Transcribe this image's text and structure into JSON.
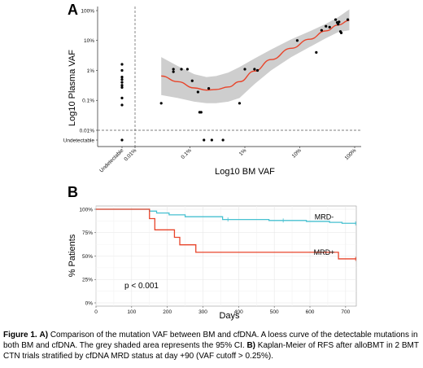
{
  "chart_data": [
    {
      "panel": "A",
      "type": "scatter",
      "xlabel": "Log10 BM VAF",
      "ylabel": "Log10 Plasma VAF",
      "x_scale": "log",
      "y_scale": "log",
      "x_ticks": [
        "Undetectable",
        "0.01%",
        "0.1%",
        "1%",
        "10%",
        "100%"
      ],
      "x_tick_values": [
        "Undetectable",
        0.0001,
        0.001,
        0.01,
        0.1,
        1
      ],
      "y_ticks": [
        "Undetectable",
        "0.01%",
        "0.1%",
        "1%",
        "10%",
        "100%"
      ],
      "y_tick_values": [
        "Undetectable",
        0.0001,
        0.001,
        0.01,
        0.1,
        1
      ],
      "thresholds": {
        "x": 0.0001,
        "y": 0.0001
      },
      "grid": false,
      "points_undetectable_bm": [
        0.016,
        0.01,
        0.006,
        0.005,
        0.004,
        0.0032,
        0.0027,
        0.0012,
        0.0007,
        "Undetectable"
      ],
      "points": [
        {
          "x": 0.0003,
          "y": 0.0008
        },
        {
          "x": 0.0005,
          "y": 0.011
        },
        {
          "x": 0.0005,
          "y": 0.009
        },
        {
          "x": 0.0007,
          "y": 0.011
        },
        {
          "x": 0.0009,
          "y": 0.011
        },
        {
          "x": 0.0011,
          "y": 0.0045
        },
        {
          "x": 0.0014,
          "y": 0.0019
        },
        {
          "x": 0.0015,
          "y": 0.0004
        },
        {
          "x": 0.0016,
          "y": 0.0004
        },
        {
          "x": 0.0018,
          "y": "Undetectable"
        },
        {
          "x": 0.0022,
          "y": 0.0025
        },
        {
          "x": 0.0025,
          "y": "Undetectable"
        },
        {
          "x": 0.004,
          "y": "Undetectable"
        },
        {
          "x": 0.008,
          "y": 0.0008
        },
        {
          "x": 0.01,
          "y": 0.011
        },
        {
          "x": 0.015,
          "y": 0.011
        },
        {
          "x": 0.017,
          "y": 0.01
        },
        {
          "x": 0.09,
          "y": 0.1
        },
        {
          "x": 0.2,
          "y": 0.04
        },
        {
          "x": 0.25,
          "y": 0.22
        },
        {
          "x": 0.3,
          "y": 0.3
        },
        {
          "x": 0.35,
          "y": 0.28
        },
        {
          "x": 0.45,
          "y": 0.5
        },
        {
          "x": 0.48,
          "y": 0.4
        },
        {
          "x": 0.5,
          "y": 0.35
        },
        {
          "x": 0.52,
          "y": 0.42
        },
        {
          "x": 0.55,
          "y": 0.2
        },
        {
          "x": 0.57,
          "y": 0.18
        },
        {
          "x": 0.75,
          "y": 0.5
        }
      ],
      "loess_curve": [
        {
          "x": 0.0003,
          "y": 0.0065
        },
        {
          "x": 0.0006,
          "y": 0.0042
        },
        {
          "x": 0.0012,
          "y": 0.0026
        },
        {
          "x": 0.002,
          "y": 0.0022
        },
        {
          "x": 0.003,
          "y": 0.0023
        },
        {
          "x": 0.005,
          "y": 0.0028
        },
        {
          "x": 0.008,
          "y": 0.0042
        },
        {
          "x": 0.015,
          "y": 0.0095
        },
        {
          "x": 0.03,
          "y": 0.023
        },
        {
          "x": 0.07,
          "y": 0.055
        },
        {
          "x": 0.15,
          "y": 0.11
        },
        {
          "x": 0.3,
          "y": 0.21
        },
        {
          "x": 0.5,
          "y": 0.33
        },
        {
          "x": 0.8,
          "y": 0.47
        }
      ],
      "ci_band": [
        {
          "x": 0.0003,
          "lo": 0.0015,
          "hi": 0.028
        },
        {
          "x": 0.0006,
          "lo": 0.0012,
          "hi": 0.014
        },
        {
          "x": 0.0012,
          "lo": 0.0009,
          "hi": 0.0075
        },
        {
          "x": 0.002,
          "lo": 0.0008,
          "hi": 0.006
        },
        {
          "x": 0.003,
          "lo": 0.0008,
          "hi": 0.0065
        },
        {
          "x": 0.005,
          "lo": 0.0009,
          "hi": 0.0085
        },
        {
          "x": 0.008,
          "lo": 0.0012,
          "hi": 0.013
        },
        {
          "x": 0.015,
          "lo": 0.0035,
          "hi": 0.025
        },
        {
          "x": 0.03,
          "lo": 0.01,
          "hi": 0.05
        },
        {
          "x": 0.07,
          "lo": 0.028,
          "hi": 0.11
        },
        {
          "x": 0.15,
          "lo": 0.06,
          "hi": 0.2
        },
        {
          "x": 0.3,
          "lo": 0.12,
          "hi": 0.36
        },
        {
          "x": 0.5,
          "lo": 0.19,
          "hi": 0.6
        },
        {
          "x": 0.8,
          "lo": 0.22,
          "hi": 1.1
        }
      ],
      "colors": {
        "points": "#000000",
        "curve": "#e8442a",
        "band": "#c9c9c9"
      }
    },
    {
      "panel": "B",
      "type": "line",
      "subtype": "kaplan-meier",
      "xlabel": "Days",
      "ylabel": "% Patients",
      "xlim": [
        0,
        730
      ],
      "ylim": [
        0,
        100
      ],
      "x_ticks": [
        0,
        100,
        200,
        300,
        400,
        500,
        600,
        700
      ],
      "y_ticks": [
        "0%",
        "25%",
        "50%",
        "75%",
        "100%"
      ],
      "y_tick_values": [
        0,
        25,
        50,
        75,
        100
      ],
      "grid": true,
      "annotation": "p < 0.001",
      "series": [
        {
          "name": "MRD-",
          "color": "#47c1d1",
          "steps": [
            [
              0,
              100
            ],
            [
              150,
              100
            ],
            [
              150,
              98
            ],
            [
              170,
              98
            ],
            [
              170,
              96
            ],
            [
              205,
              96
            ],
            [
              205,
              94
            ],
            [
              250,
              94
            ],
            [
              250,
              92
            ],
            [
              355,
              92
            ],
            [
              355,
              89
            ],
            [
              485,
              89
            ],
            [
              485,
              88
            ],
            [
              590,
              88
            ],
            [
              590,
              87
            ],
            [
              655,
              87
            ],
            [
              655,
              86
            ],
            [
              690,
              86
            ],
            [
              690,
              85
            ],
            [
              730,
              85
            ]
          ],
          "censor": [
            [
              370,
              89
            ],
            [
              525,
              88
            ],
            [
              728,
              85
            ]
          ]
        },
        {
          "name": "MRD+",
          "color": "#e8442a",
          "steps": [
            [
              0,
              100
            ],
            [
              150,
              100
            ],
            [
              150,
              90
            ],
            [
              165,
              90
            ],
            [
              165,
              78
            ],
            [
              220,
              78
            ],
            [
              220,
              70
            ],
            [
              235,
              70
            ],
            [
              235,
              62
            ],
            [
              280,
              62
            ],
            [
              280,
              54
            ],
            [
              680,
              54
            ],
            [
              680,
              47
            ],
            [
              730,
              47
            ]
          ],
          "censor": [
            [
              728,
              47
            ]
          ]
        }
      ]
    }
  ],
  "caption": {
    "fig_label": "Figure 1.",
    "a_label": "A)",
    "a_text": "Comparison of the mutation VAF between BM and cfDNA. A loess curve of the detectable mutations in both BM and cfDNA. The grey shaded area represents the 95% CI.",
    "b_label": "B)",
    "b_text": "Kaplan-Meier of RFS after alloBMT in 2 BMT CTN trials stratified by cfDNA MRD status at day +90 (VAF cutoff > 0.25%)."
  }
}
